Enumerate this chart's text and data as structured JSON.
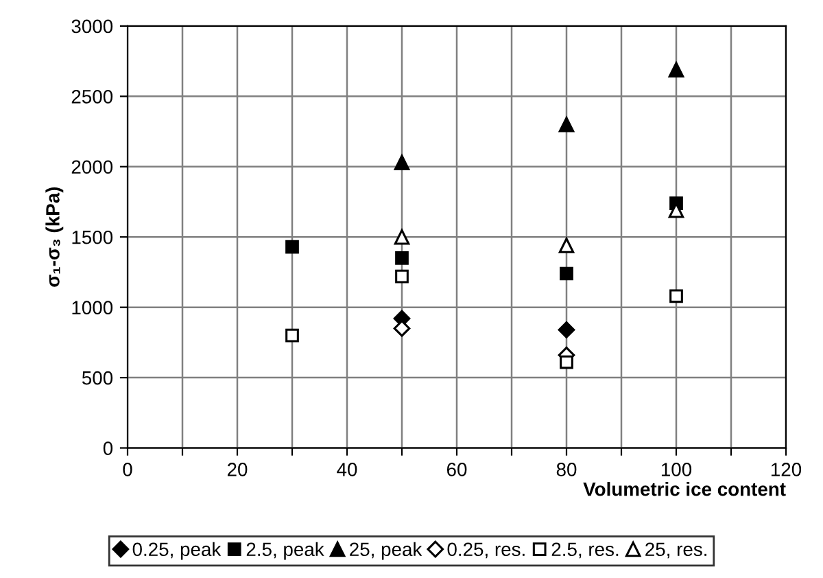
{
  "chart_data": {
    "type": "scatter",
    "xlabel": "Volumetric ice content",
    "ylabel": "σ₁-σ₃ (kPa)",
    "xlim": [
      0,
      120
    ],
    "xticks": [
      0,
      {
        "value": 10,
        "label": null
      },
      20,
      {
        "value": 30,
        "label": null
      },
      40,
      {
        "value": 50,
        "label": null
      },
      60,
      {
        "value": 70,
        "label": null
      },
      80,
      {
        "value": 90,
        "label": null
      },
      100,
      {
        "value": 110,
        "label": null
      },
      120
    ],
    "ylim": [
      0,
      3000
    ],
    "yticks": [
      0,
      500,
      1000,
      1500,
      2000,
      2500,
      3000
    ],
    "grid": true,
    "legend": "bottom",
    "series": [
      {
        "name": "0.25, peak",
        "color": "#000000",
        "marker": "diamond",
        "x": [
          50,
          80
        ],
        "values": [
          920,
          840
        ]
      },
      {
        "name": "2.5, peak",
        "color": "#000000",
        "marker": "square",
        "x": [
          30,
          50,
          80,
          100
        ],
        "values": [
          1430,
          1350,
          1240,
          1740
        ]
      },
      {
        "name": "25, peak",
        "color": "#000000",
        "marker": "triangle",
        "x": [
          50,
          80,
          100
        ],
        "values": [
          2030,
          2300,
          2690
        ]
      },
      {
        "name": "0.25, res.",
        "color": "#ffffff",
        "marker": "diamond",
        "x": [
          50,
          80
        ],
        "values": [
          850,
          660
        ]
      },
      {
        "name": "2.5, res.",
        "color": "#ffffff",
        "marker": "square",
        "x": [
          30,
          50,
          80,
          100
        ],
        "values": [
          800,
          1220,
          610,
          1080
        ]
      },
      {
        "name": "25, res.",
        "color": "#ffffff",
        "marker": "triangle",
        "x": [
          50,
          80,
          100
        ],
        "values": [
          1500,
          1440,
          1690
        ]
      }
    ]
  }
}
